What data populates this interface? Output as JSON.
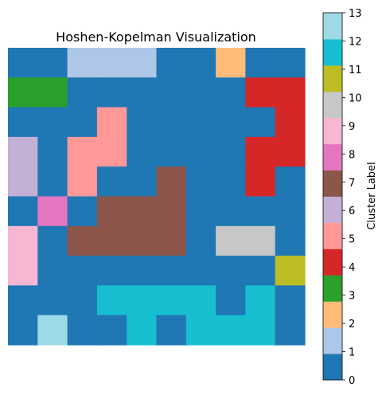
{
  "chart_data": {
    "type": "heatmap",
    "title": "Hoshen-Kopelman Visualization",
    "colorbar_label": "Cluster Label",
    "colorbar_ticks": [
      0,
      1,
      2,
      3,
      4,
      5,
      6,
      7,
      8,
      9,
      10,
      11,
      12,
      13
    ],
    "colorbar_tick_labels": [
      "0",
      "1",
      "2",
      "3",
      "4",
      "5",
      "6",
      "7",
      "8",
      "9",
      "10",
      "11",
      "12",
      "13"
    ],
    "value_range": [
      0,
      13
    ],
    "colormap": [
      "#1f77b4",
      "#aec7e8",
      "#ffbb78",
      "#2ca02c",
      "#d62728",
      "#ff9896",
      "#c5b0d5",
      "#8c564b",
      "#e377c2",
      "#f7b6d2",
      "#c7c7c7",
      "#bcbd22",
      "#17becf",
      "#9edae5"
    ],
    "axes_visible": false,
    "grid": [
      [
        0,
        0,
        1,
        1,
        1,
        0,
        0,
        2,
        0,
        0
      ],
      [
        3,
        3,
        0,
        0,
        0,
        0,
        0,
        0,
        4,
        4
      ],
      [
        0,
        0,
        0,
        5,
        0,
        0,
        0,
        0,
        0,
        4
      ],
      [
        6,
        0,
        5,
        5,
        0,
        0,
        0,
        0,
        4,
        4
      ],
      [
        6,
        0,
        5,
        0,
        0,
        7,
        0,
        0,
        4,
        0
      ],
      [
        0,
        8,
        0,
        7,
        7,
        7,
        0,
        0,
        0,
        0
      ],
      [
        9,
        0,
        7,
        7,
        7,
        7,
        0,
        10,
        10,
        0
      ],
      [
        9,
        0,
        0,
        0,
        0,
        0,
        0,
        0,
        0,
        11
      ],
      [
        0,
        0,
        0,
        12,
        12,
        12,
        12,
        0,
        12,
        0
      ],
      [
        0,
        13,
        0,
        0,
        12,
        0,
        12,
        12,
        12,
        0
      ]
    ]
  }
}
